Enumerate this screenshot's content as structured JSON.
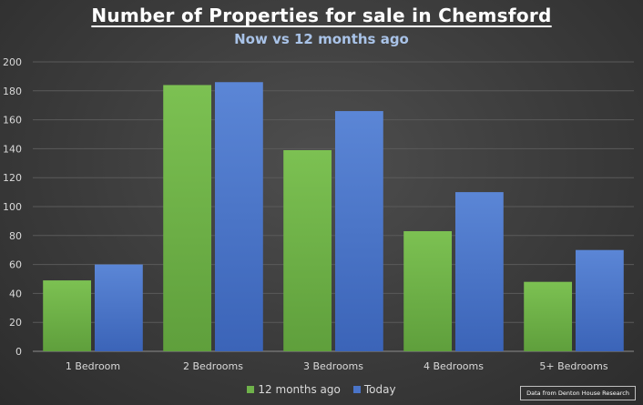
{
  "chart_data": {
    "type": "bar",
    "title": "Number of Properties for sale in Chemsford",
    "subtitle": "Now vs 12 months ago",
    "categories": [
      "1 Bedroom",
      "2 Bedrooms",
      "3 Bedrooms",
      "4 Bedrooms",
      "5+ Bedrooms"
    ],
    "series": [
      {
        "name": "12 months ago",
        "values": [
          49,
          184,
          139,
          83,
          48
        ],
        "color": "#6fb24a"
      },
      {
        "name": "Today",
        "values": [
          60,
          186,
          166,
          110,
          70
        ],
        "color": "#4a74c8"
      }
    ],
    "ylim": [
      0,
      200
    ],
    "yticks": [
      0,
      20,
      40,
      60,
      80,
      100,
      120,
      140,
      160,
      180,
      200
    ],
    "grid": true,
    "legend_position": "bottom",
    "source_note": "Data from Denton House Research"
  }
}
